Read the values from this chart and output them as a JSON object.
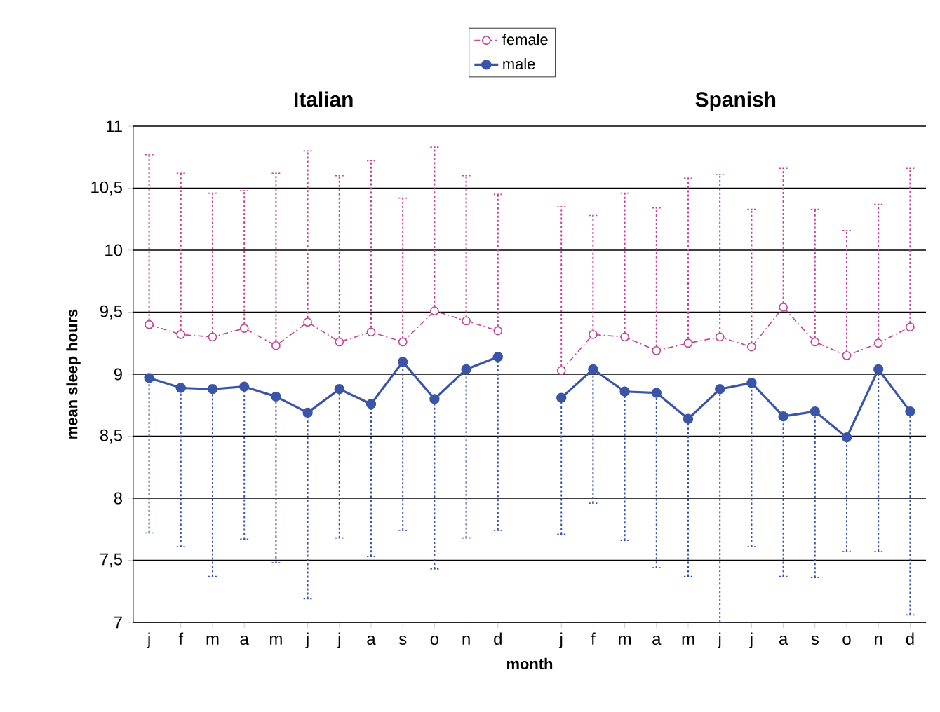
{
  "chart_data": {
    "type": "line",
    "annotations": [
      "Italian",
      "Spanish"
    ],
    "xlabel": "month",
    "ylabel": "mean sleep hours",
    "categories": [
      "j",
      "f",
      "m",
      "a",
      "m",
      "j",
      "j",
      "a",
      "s",
      "o",
      "n",
      "d",
      null,
      "j",
      "f",
      "m",
      "a",
      "m",
      "j",
      "j",
      "a",
      "s",
      "o",
      "n",
      "d"
    ],
    "series": [
      {
        "name": "female",
        "color": "#c0449a",
        "line_style": "dashed",
        "marker": "circle",
        "values": [
          9.4,
          9.32,
          9.3,
          9.37,
          9.23,
          9.42,
          9.26,
          9.34,
          9.26,
          9.51,
          9.43,
          9.35,
          null,
          9.03,
          9.32,
          9.3,
          9.19,
          9.25,
          9.3,
          9.22,
          9.54,
          9.26,
          9.15,
          9.25,
          9.38
        ],
        "errors": [
          [
            9.4,
            10.77
          ],
          [
            9.32,
            10.62
          ],
          [
            9.3,
            10.46
          ],
          [
            9.37,
            10.48
          ],
          [
            9.23,
            10.62
          ],
          [
            9.42,
            10.8
          ],
          [
            9.26,
            10.6
          ],
          [
            9.34,
            10.72
          ],
          [
            9.26,
            10.42
          ],
          [
            9.51,
            10.83
          ],
          [
            9.43,
            10.6
          ],
          [
            9.35,
            10.45
          ],
          null,
          [
            9.03,
            10.35
          ],
          [
            9.32,
            10.28
          ],
          [
            9.3,
            10.46
          ],
          [
            9.19,
            10.34
          ],
          [
            9.25,
            10.58
          ],
          [
            9.3,
            10.61
          ],
          [
            9.22,
            10.33
          ],
          [
            9.54,
            10.66
          ],
          [
            9.26,
            10.33
          ],
          [
            9.15,
            10.16
          ],
          [
            9.25,
            10.37
          ],
          [
            9.38,
            10.66
          ]
        ]
      },
      {
        "name": "male",
        "color": "#3a55a8",
        "line_style": "solid",
        "marker": "circle",
        "values": [
          8.97,
          8.89,
          8.88,
          8.9,
          8.82,
          8.69,
          8.88,
          8.76,
          9.1,
          8.8,
          9.04,
          9.14,
          null,
          8.81,
          9.04,
          8.86,
          8.85,
          8.64,
          8.88,
          8.93,
          8.66,
          8.7,
          8.49,
          9.04,
          8.7
        ],
        "errors": [
          [
            7.72,
            8.97
          ],
          [
            7.61,
            8.89
          ],
          [
            7.37,
            8.88
          ],
          [
            7.67,
            8.9
          ],
          [
            7.48,
            8.82
          ],
          [
            7.19,
            8.69
          ],
          [
            7.68,
            8.88
          ],
          [
            7.53,
            8.76
          ],
          [
            7.74,
            9.1
          ],
          [
            7.43,
            8.8
          ],
          [
            7.68,
            9.04
          ],
          [
            7.74,
            9.14
          ],
          null,
          [
            7.71,
            8.81
          ],
          [
            7.96,
            9.04
          ],
          [
            7.66,
            8.86
          ],
          [
            7.44,
            8.85
          ],
          [
            7.37,
            8.64
          ],
          [
            7.0,
            8.88
          ],
          [
            7.61,
            8.93
          ],
          [
            7.37,
            8.66
          ],
          [
            7.36,
            8.7
          ],
          [
            7.57,
            8.49
          ],
          [
            7.57,
            9.04
          ],
          [
            7.06,
            8.7
          ]
        ]
      }
    ],
    "ylim": [
      7,
      11
    ],
    "yticks": [
      7,
      {
        "value": 7.5,
        "label": "7,5"
      },
      8,
      {
        "value": 8.5,
        "label": "8,5"
      },
      9,
      {
        "value": 9.5,
        "label": "9,5"
      },
      10,
      {
        "value": 10.5,
        "label": "10,5"
      },
      11
    ],
    "grid": "y",
    "legend": "top"
  }
}
